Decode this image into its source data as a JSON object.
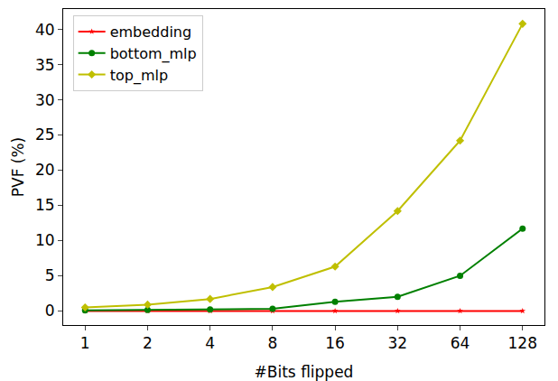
{
  "chart_data": {
    "type": "line",
    "x_label": "#Bits flipped",
    "y_label": "PVF (%)",
    "categories": [
      "1",
      "2",
      "4",
      "8",
      "16",
      "32",
      "64",
      "128"
    ],
    "series": [
      {
        "name": "embedding",
        "color": "#ff0000",
        "marker": "star",
        "values": [
          0,
          0,
          0,
          0,
          0,
          0,
          0,
          0
        ]
      },
      {
        "name": "bottom_mlp",
        "color": "#008000",
        "marker": "circle",
        "values": [
          0.1,
          0.15,
          0.2,
          0.3,
          1.3,
          2.0,
          5.0,
          11.7
        ]
      },
      {
        "name": "top_mlp",
        "color": "#bfbf00",
        "marker": "diamond",
        "values": [
          0.5,
          0.9,
          1.7,
          3.4,
          6.3,
          14.2,
          24.2,
          40.8
        ]
      }
    ],
    "ylim": [
      -2,
      42.9
    ],
    "yticks": [
      0,
      5,
      10,
      15,
      20,
      25,
      30,
      35,
      40
    ],
    "grid": false,
    "legend": "upper left"
  }
}
